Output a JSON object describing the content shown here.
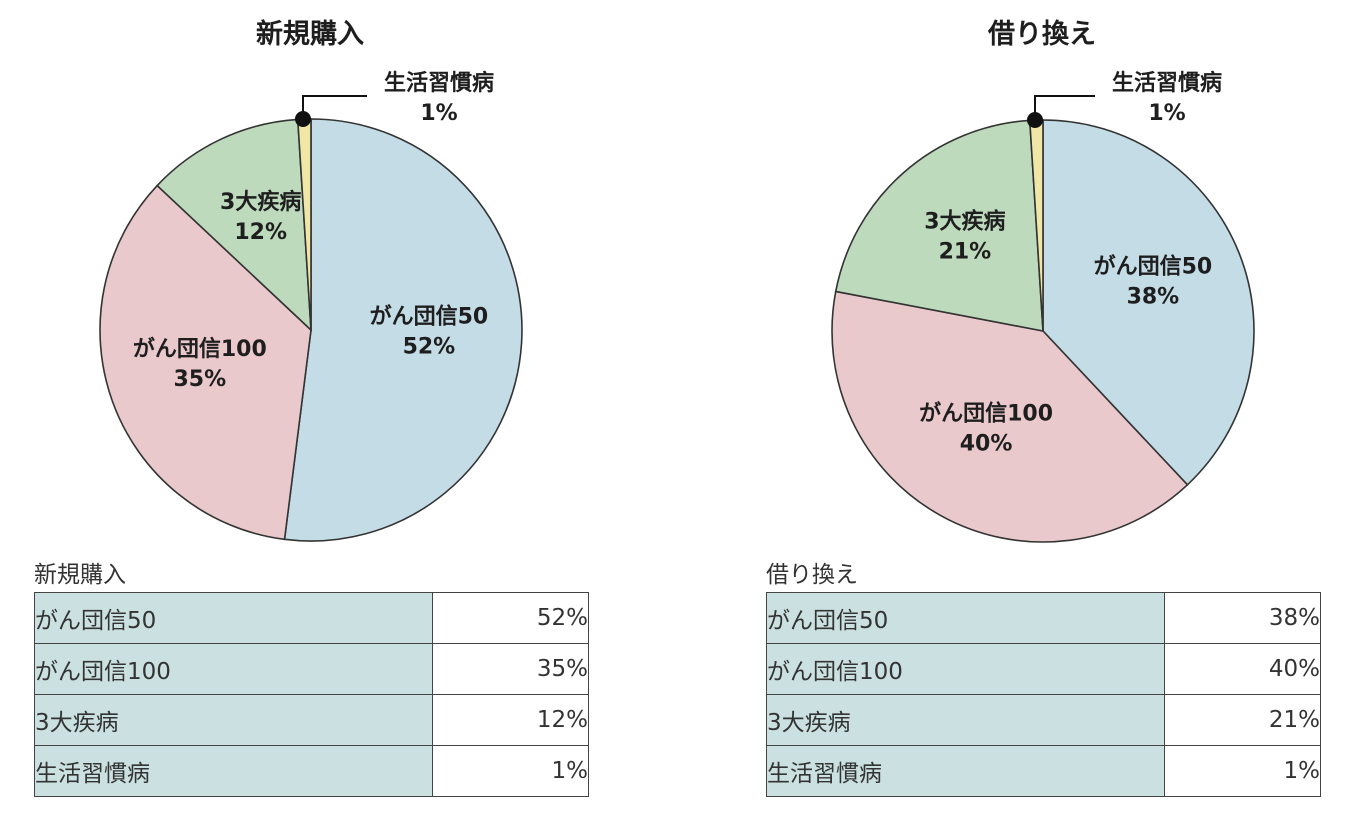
{
  "chart_data": [
    {
      "type": "pie",
      "title": "新規購入",
      "slices": [
        {
          "label": "がん団信50",
          "value": 52,
          "display": "52%",
          "color": "#c3dce6"
        },
        {
          "label": "がん団信100",
          "value": 35,
          "display": "35%",
          "color": "#eac9cd"
        },
        {
          "label": "3大疾病",
          "value": 12,
          "display": "12%",
          "color": "#bddabd"
        },
        {
          "label": "生活習慣病",
          "value": 1,
          "display": "1%",
          "color": "#f0e6a6"
        }
      ]
    },
    {
      "type": "pie",
      "title": "借り換え",
      "slices": [
        {
          "label": "がん団信50",
          "value": 38,
          "display": "38%",
          "color": "#c3dce6"
        },
        {
          "label": "がん団信100",
          "value": 40,
          "display": "40%",
          "color": "#eac9cd"
        },
        {
          "label": "3大疾病",
          "value": 21,
          "display": "21%",
          "color": "#bddabd"
        },
        {
          "label": "生活習慣病",
          "value": 1,
          "display": "1%",
          "color": "#f0e6a6"
        }
      ]
    }
  ],
  "tables": [
    {
      "caption": "新規購入",
      "rows": [
        {
          "name": "がん団信50",
          "value": "52%"
        },
        {
          "name": "がん団信100",
          "value": "35%"
        },
        {
          "name": "3大疾病",
          "value": "12%"
        },
        {
          "name": "生活習慣病",
          "value": "1%"
        }
      ]
    },
    {
      "caption": "借り換え",
      "rows": [
        {
          "name": "がん団信50",
          "value": "38%"
        },
        {
          "name": "がん団信100",
          "value": "40%"
        },
        {
          "name": "3大疾病",
          "value": "21%"
        },
        {
          "name": "生活習慣病",
          "value": "1%"
        }
      ]
    }
  ]
}
